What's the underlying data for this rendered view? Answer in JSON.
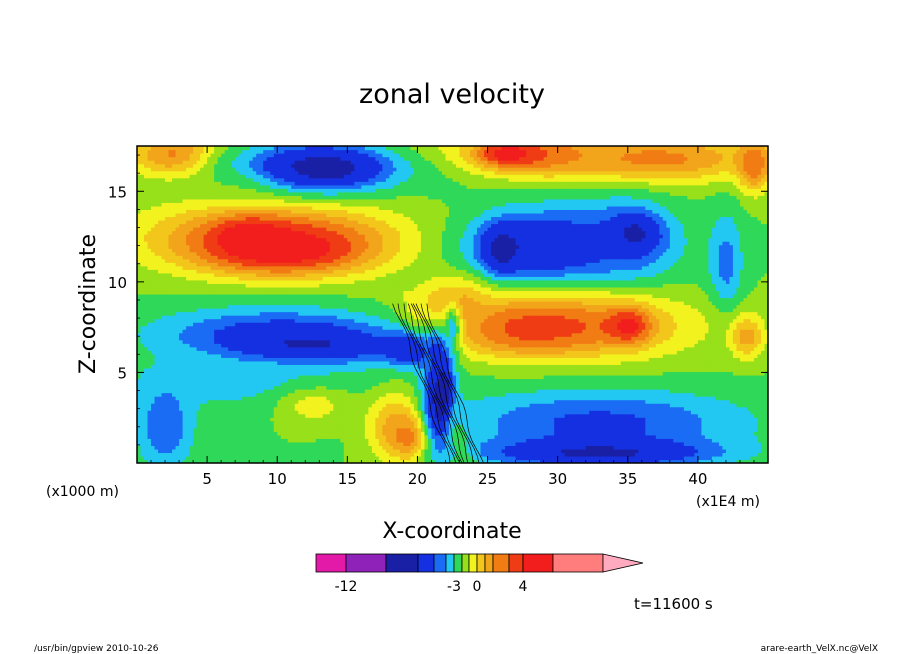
{
  "chart_data": {
    "type": "heatmap",
    "title": "zonal velocity",
    "xlabel": "X-coordinate",
    "ylabel": "Z-coordinate",
    "x_unit_left": "(x1000 m)",
    "x_unit_right": "(x1E4 m)",
    "xlim": [
      0,
      45
    ],
    "ylim": [
      0,
      17.5
    ],
    "x_ticks": [
      5,
      10,
      15,
      20,
      25,
      30,
      35,
      40
    ],
    "y_ticks": [
      5,
      10,
      15
    ],
    "time_label": "t=11600 s",
    "colorbar": {
      "levels": [
        -14,
        -12,
        -9,
        -7,
        -5,
        -4,
        -3,
        -2,
        -1,
        0,
        1,
        2,
        3,
        4,
        6,
        10
      ],
      "tick_values": [
        -12,
        -3,
        0,
        4
      ],
      "tick_labels": [
        "-12",
        "-3",
        "0",
        "4"
      ],
      "colors": [
        "#e31aa7",
        "#8f22b8",
        "#1a20a6",
        "#1530e0",
        "#1a6cf5",
        "#22c8f2",
        "#2fd858",
        "#97e01a",
        "#f2f21f",
        "#f2c61a",
        "#f2a41a",
        "#f27c14",
        "#f03c14",
        "#f21e1e",
        "#ff7d7d",
        "#ffaabf"
      ]
    },
    "field": {
      "background": -2,
      "blobs": [
        {
          "x": 22.0,
          "y": 17.5,
          "rx": 45,
          "ry": 1.3,
          "v": -1
        },
        {
          "x": 3.0,
          "y": 17.0,
          "rx": 4.0,
          "ry": 1.5,
          "v": 3.5
        },
        {
          "x": 9.0,
          "y": 16.2,
          "rx": 4.0,
          "ry": 1.4,
          "v": 2.0
        },
        {
          "x": 9.5,
          "y": 12.6,
          "rx": 11.0,
          "ry": 2.4,
          "v": 3.0
        },
        {
          "x": 10.5,
          "y": 11.8,
          "rx": 7.5,
          "ry": 1.7,
          "v": 5.0
        },
        {
          "x": 8.0,
          "y": 12.5,
          "rx": 3.0,
          "ry": 1.2,
          "v": 5.0
        },
        {
          "x": 12.0,
          "y": 16.5,
          "rx": 9.0,
          "ry": 2.0,
          "v": -5.5
        },
        {
          "x": 13.5,
          "y": 16.3,
          "rx": 4.5,
          "ry": 1.2,
          "v": -8.0
        },
        {
          "x": 28.5,
          "y": 17.0,
          "rx": 6.0,
          "ry": 1.4,
          "v": 3.2
        },
        {
          "x": 26.5,
          "y": 17.1,
          "rx": 2.5,
          "ry": 0.8,
          "v": 5.0
        },
        {
          "x": 37.0,
          "y": 16.8,
          "rx": 9.0,
          "ry": 1.6,
          "v": 2.4
        },
        {
          "x": 44.0,
          "y": 16.5,
          "rx": 1.5,
          "ry": 1.8,
          "v": 3.0
        },
        {
          "x": 30.5,
          "y": 12.0,
          "rx": 8.0,
          "ry": 2.7,
          "v": -5.2
        },
        {
          "x": 35.0,
          "y": 12.4,
          "rx": 4.0,
          "ry": 2.5,
          "v": -5.2
        },
        {
          "x": 28.5,
          "y": 11.9,
          "rx": 5.0,
          "ry": 2.0,
          "v": -6.5
        },
        {
          "x": 26.0,
          "y": 11.8,
          "rx": 1.6,
          "ry": 1.6,
          "v": -8.0
        },
        {
          "x": 35.5,
          "y": 12.7,
          "rx": 2.0,
          "ry": 1.2,
          "v": -7.5
        },
        {
          "x": 42.0,
          "y": 11.0,
          "rx": 1.5,
          "ry": 3.5,
          "v": -4.5
        },
        {
          "x": 30.0,
          "y": 7.6,
          "rx": 11.0,
          "ry": 2.3,
          "v": 3.0
        },
        {
          "x": 27.5,
          "y": 7.4,
          "rx": 5.5,
          "ry": 1.4,
          "v": 3.5
        },
        {
          "x": 35.0,
          "y": 7.6,
          "rx": 2.0,
          "ry": 1.2,
          "v": 4.5
        },
        {
          "x": 22.5,
          "y": 8.5,
          "rx": 3.0,
          "ry": 2.0,
          "v": 2.0
        },
        {
          "x": 43.5,
          "y": 7.0,
          "rx": 1.5,
          "ry": 1.5,
          "v": 1.5
        },
        {
          "x": 10.0,
          "y": 7.2,
          "rx": 11.0,
          "ry": 1.8,
          "v": -5.5
        },
        {
          "x": 12.0,
          "y": 6.4,
          "rx": 7.0,
          "ry": 1.2,
          "v": -8.0
        },
        {
          "x": 19.5,
          "y": 6.3,
          "rx": 2.5,
          "ry": 1.2,
          "v": -7.5
        },
        {
          "x": 8.0,
          "y": 4.5,
          "rx": 12.0,
          "ry": 2.0,
          "v": -3.5
        },
        {
          "x": 2.0,
          "y": 2.0,
          "rx": 2.5,
          "ry": 3.0,
          "v": -5.0
        },
        {
          "x": 13.0,
          "y": 3.2,
          "rx": 4.0,
          "ry": 1.5,
          "v": -1.0
        },
        {
          "x": 12.5,
          "y": 3.1,
          "rx": 2.0,
          "ry": 0.8,
          "v": -0.5
        },
        {
          "x": 18.5,
          "y": 2.0,
          "rx": 2.5,
          "ry": 2.3,
          "v": 2.5
        },
        {
          "x": 19.5,
          "y": 1.5,
          "rx": 1.5,
          "ry": 1.3,
          "v": 4.0
        },
        {
          "x": 21.5,
          "y": 4.0,
          "rx": 1.3,
          "ry": 3.5,
          "v": -9.0
        },
        {
          "x": 21.8,
          "y": 3.5,
          "rx": 0.6,
          "ry": 1.5,
          "v": -13.0
        },
        {
          "x": 33.0,
          "y": 2.3,
          "rx": 13.0,
          "ry": 2.2,
          "v": -5.3
        },
        {
          "x": 33.0,
          "y": 0.6,
          "rx": 10.0,
          "ry": 1.0,
          "v": -7.5
        },
        {
          "x": 22.5,
          "y": 7.5,
          "rx": 0.7,
          "ry": 1.6,
          "v": -3.5
        }
      ]
    }
  },
  "footer": {
    "left": "/usr/bin/gpview   2010-10-26",
    "right": "arare-earth_VelX.nc@VelX"
  }
}
